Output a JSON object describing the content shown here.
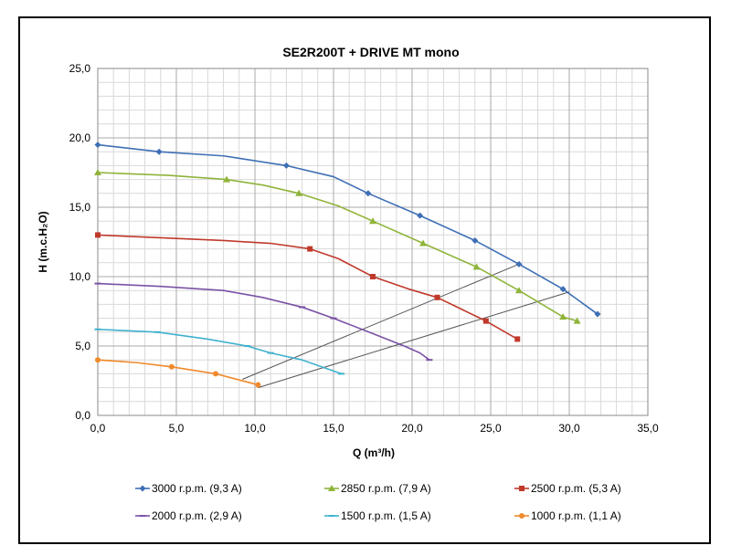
{
  "chart_data": {
    "type": "line",
    "title": "SE2R200T + DRIVE MT mono",
    "xlabel": "Q (m³/h)",
    "ylabel": "H (m.c.H₂O)",
    "xlim": [
      0,
      35
    ],
    "ylim": [
      0,
      25
    ],
    "x_ticks": [
      "0,0",
      "5,0",
      "10,0",
      "15,0",
      "20,0",
      "25,0",
      "30,0",
      "35,0"
    ],
    "y_ticks": [
      "0,0",
      "5,0",
      "10,0",
      "15,0",
      "20,0",
      "25,0"
    ],
    "grid": true,
    "legend_position": "bottom",
    "series": [
      {
        "name": "3000 r.p.m. (9,3 A)",
        "color": "#3e6fb5",
        "marker": "diamond",
        "x": [
          0,
          3.9,
          8,
          12,
          15,
          17.2,
          20.5,
          24,
          26.8,
          29.6,
          31.8
        ],
        "y": [
          19.5,
          19.0,
          18.7,
          18.0,
          17.2,
          16.0,
          14.4,
          12.6,
          10.9,
          9.1,
          7.3
        ],
        "marker_x": [
          0,
          3.9,
          12,
          17.2,
          20.5,
          24,
          26.8,
          29.6,
          31.8
        ],
        "marker_y": [
          19.5,
          19.0,
          18.0,
          16.0,
          14.4,
          12.6,
          10.9,
          9.1,
          7.3
        ]
      },
      {
        "name": "2850 r.p.m. (7,9 A)",
        "color": "#8fb43a",
        "marker": "triangle",
        "x": [
          0,
          4.5,
          8.2,
          10.5,
          12.8,
          15.3,
          17.5,
          20.7,
          24.1,
          26.8,
          29.6,
          30.5
        ],
        "y": [
          17.5,
          17.3,
          17.0,
          16.6,
          16.0,
          15.1,
          14.0,
          12.4,
          10.7,
          9.0,
          7.1,
          6.8
        ],
        "marker_x": [
          0,
          8.2,
          12.8,
          17.5,
          20.7,
          24.1,
          26.8,
          29.6,
          30.5
        ],
        "marker_y": [
          17.5,
          17.0,
          16.0,
          14.0,
          12.4,
          10.7,
          9.0,
          7.1,
          6.8
        ]
      },
      {
        "name": "2500 r.p.m. (5,3 A)",
        "color": "#c0392b",
        "marker": "square",
        "x": [
          0,
          4,
          8,
          11,
          13.5,
          15.3,
          17.5,
          19.8,
          21.6,
          24.7,
          26.7
        ],
        "y": [
          13.0,
          12.8,
          12.6,
          12.4,
          12.0,
          11.3,
          10.0,
          9.1,
          8.5,
          6.8,
          5.5
        ],
        "marker_x": [
          0,
          13.5,
          17.5,
          21.6,
          24.7,
          26.7
        ],
        "marker_y": [
          13.0,
          12.0,
          10.0,
          8.5,
          6.8,
          5.5
        ]
      },
      {
        "name": "2000 r.p.m. (2,9 A)",
        "color": "#7a52a6",
        "marker": "dash",
        "x": [
          0,
          4,
          8,
          10.5,
          13,
          15,
          17.5,
          19.5,
          20.5,
          21.1
        ],
        "y": [
          9.5,
          9.3,
          9.0,
          8.5,
          7.8,
          7.0,
          5.9,
          5.0,
          4.5,
          4.0
        ],
        "marker_x": [
          0,
          13,
          15,
          21.1
        ],
        "marker_y": [
          9.5,
          7.8,
          7.0,
          4.0
        ]
      },
      {
        "name": "1500 r.p.m. (1,5 A)",
        "color": "#3fb2cf",
        "marker": "dash",
        "x": [
          0,
          3.8,
          7,
          9.5,
          11,
          13,
          15.5
        ],
        "y": [
          6.2,
          6.0,
          5.5,
          5.0,
          4.5,
          4.0,
          3.0
        ],
        "marker_x": [
          0,
          3.8,
          9.5,
          11,
          15.5
        ],
        "marker_y": [
          6.2,
          6.0,
          5.0,
          4.5,
          3.0
        ]
      },
      {
        "name": "1000 r.p.m. (1,1 A)",
        "color": "#f08a2c",
        "marker": "circle",
        "x": [
          0,
          2.5,
          4.7,
          7.5,
          10.2
        ],
        "y": [
          4.0,
          3.8,
          3.5,
          3.0,
          2.2
        ],
        "marker_x": [
          0,
          4.7,
          7.5,
          10.2
        ],
        "marker_y": [
          4.0,
          3.5,
          3.0,
          2.2
        ]
      }
    ],
    "reference_lines": [
      {
        "color": "#555555",
        "x": [
          9.2,
          26.8
        ],
        "y": [
          2.6,
          10.9
        ]
      },
      {
        "color": "#555555",
        "x": [
          10.2,
          30.0
        ],
        "y": [
          2.0,
          8.9
        ]
      }
    ]
  }
}
